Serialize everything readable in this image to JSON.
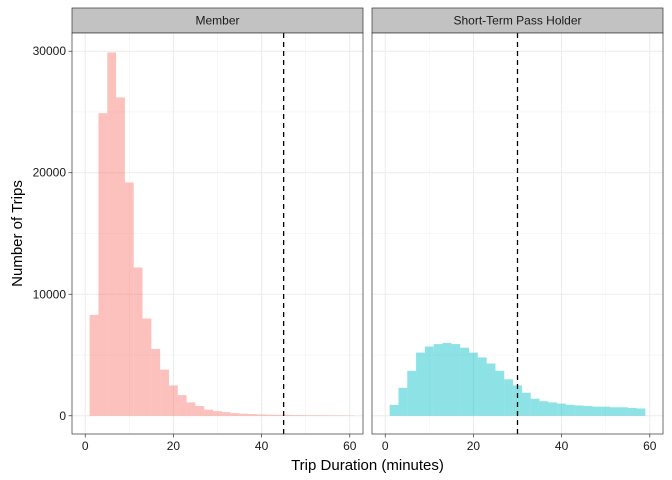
{
  "chart_data": {
    "type": "histogram",
    "xlabel": "Trip Duration (minutes)",
    "ylabel": "Number of Trips",
    "xlim": [
      -3,
      63
    ],
    "ylim": [
      -1500,
      31500
    ],
    "x_ticks": [
      0,
      20,
      40,
      60
    ],
    "y_ticks": [
      0,
      10000,
      20000,
      30000
    ],
    "y_tick_labels": [
      "0",
      "10000",
      "20000",
      "30000"
    ],
    "bin_width": 2,
    "grid": true,
    "panels": [
      {
        "strip": "Member",
        "color": "#F8766D",
        "vline": 45,
        "bins": [
          {
            "x": 2,
            "count": 8300
          },
          {
            "x": 4,
            "count": 24900
          },
          {
            "x": 6,
            "count": 29900
          },
          {
            "x": 8,
            "count": 26200
          },
          {
            "x": 10,
            "count": 19200
          },
          {
            "x": 12,
            "count": 12200
          },
          {
            "x": 14,
            "count": 8000
          },
          {
            "x": 16,
            "count": 5500
          },
          {
            "x": 18,
            "count": 3800
          },
          {
            "x": 20,
            "count": 2500
          },
          {
            "x": 22,
            "count": 1700
          },
          {
            "x": 24,
            "count": 1100
          },
          {
            "x": 26,
            "count": 800
          },
          {
            "x": 28,
            "count": 500
          },
          {
            "x": 30,
            "count": 380
          },
          {
            "x": 32,
            "count": 300
          },
          {
            "x": 34,
            "count": 220
          },
          {
            "x": 36,
            "count": 170
          },
          {
            "x": 38,
            "count": 140
          },
          {
            "x": 40,
            "count": 110
          },
          {
            "x": 42,
            "count": 90
          },
          {
            "x": 44,
            "count": 80
          },
          {
            "x": 46,
            "count": 70
          },
          {
            "x": 48,
            "count": 60
          },
          {
            "x": 50,
            "count": 50
          },
          {
            "x": 52,
            "count": 45
          },
          {
            "x": 54,
            "count": 40
          },
          {
            "x": 56,
            "count": 35
          },
          {
            "x": 58,
            "count": 30
          },
          {
            "x": 60,
            "count": 25
          }
        ]
      },
      {
        "strip": "Short-Term Pass Holder",
        "color": "#00BFC4",
        "vline": 30,
        "bins": [
          {
            "x": 2,
            "count": 900
          },
          {
            "x": 4,
            "count": 2300
          },
          {
            "x": 6,
            "count": 3700
          },
          {
            "x": 8,
            "count": 5200
          },
          {
            "x": 10,
            "count": 5700
          },
          {
            "x": 12,
            "count": 5900
          },
          {
            "x": 14,
            "count": 6000
          },
          {
            "x": 16,
            "count": 5900
          },
          {
            "x": 18,
            "count": 5600
          },
          {
            "x": 20,
            "count": 5200
          },
          {
            "x": 22,
            "count": 4800
          },
          {
            "x": 24,
            "count": 4300
          },
          {
            "x": 26,
            "count": 3700
          },
          {
            "x": 28,
            "count": 3000
          },
          {
            "x": 30,
            "count": 2500
          },
          {
            "x": 32,
            "count": 1900
          },
          {
            "x": 34,
            "count": 1400
          },
          {
            "x": 36,
            "count": 1200
          },
          {
            "x": 38,
            "count": 1100
          },
          {
            "x": 40,
            "count": 1000
          },
          {
            "x": 42,
            "count": 900
          },
          {
            "x": 44,
            "count": 850
          },
          {
            "x": 46,
            "count": 800
          },
          {
            "x": 48,
            "count": 750
          },
          {
            "x": 50,
            "count": 750
          },
          {
            "x": 52,
            "count": 700
          },
          {
            "x": 54,
            "count": 700
          },
          {
            "x": 56,
            "count": 650
          },
          {
            "x": 58,
            "count": 600
          }
        ]
      }
    ]
  }
}
